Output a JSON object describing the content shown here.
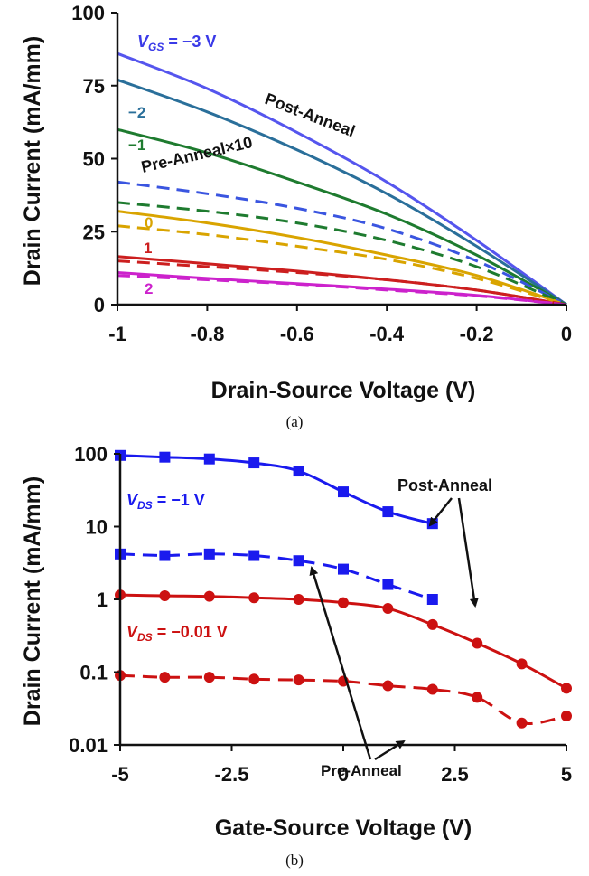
{
  "chart_data": [
    {
      "type": "line",
      "caption": "(a)",
      "xlabel": "Drain-Source Voltage (V)",
      "ylabel": "Drain Current (mA/mm)",
      "xlim": [
        -1,
        0
      ],
      "ylim": [
        0,
        100
      ],
      "xticks": [
        "-1",
        "-0.8",
        "-0.6",
        "-0.4",
        "-0.2",
        "0"
      ],
      "yticks": [
        "0",
        "25",
        "50",
        "75",
        "100"
      ],
      "grid": false,
      "annotations": {
        "vgs_label": "V",
        "vgs_sub": "GS",
        "vgs_value": " = −3 V",
        "post_anneal": "Post-Anneal",
        "pre_anneal": "Pre-Anneal×10",
        "gate_labels": [
          "−2",
          "−1",
          "0",
          "1",
          "2"
        ]
      },
      "series": [
        {
          "vgs": -3,
          "curve": "post-anneal",
          "color": "#5555ee",
          "x": [
            -1,
            -0.8,
            -0.6,
            -0.4,
            -0.2,
            0
          ],
          "y": [
            86,
            74,
            59,
            42,
            22,
            0
          ]
        },
        {
          "vgs": -2,
          "curve": "post-anneal",
          "color": "#2a6f9a",
          "x": [
            -1,
            -0.8,
            -0.6,
            -0.4,
            -0.2,
            0
          ],
          "y": [
            77,
            66,
            53,
            38,
            20,
            0
          ]
        },
        {
          "vgs": -1,
          "curve": "post-anneal",
          "color": "#1e7b2f",
          "x": [
            -1,
            -0.8,
            -0.6,
            -0.4,
            -0.2,
            0
          ],
          "y": [
            60,
            52,
            42,
            31,
            17,
            0
          ]
        },
        {
          "vgs": 0,
          "curve": "post-anneal",
          "color": "#d9a400",
          "x": [
            -1,
            -0.8,
            -0.6,
            -0.4,
            -0.2,
            0
          ],
          "y": [
            32,
            28,
            23,
            17,
            10,
            0
          ]
        },
        {
          "vgs": 1,
          "curve": "post-anneal",
          "color": "#cc1f1f",
          "x": [
            -1,
            -0.8,
            -0.6,
            -0.4,
            -0.2,
            0
          ],
          "y": [
            16.5,
            14,
            11.5,
            8.5,
            5,
            0
          ]
        },
        {
          "vgs": 2,
          "curve": "post-anneal",
          "color": "#cc22cc",
          "x": [
            -1,
            -0.8,
            -0.6,
            -0.4,
            -0.2,
            0
          ],
          "y": [
            11,
            9,
            7.2,
            5.3,
            3.2,
            0
          ]
        },
        {
          "vgs": -3,
          "curve": "pre-anneal-x10",
          "color": "#3a55e0",
          "x": [
            -1,
            -0.8,
            -0.6,
            -0.4,
            -0.2,
            0
          ],
          "y": [
            42,
            38,
            33,
            26,
            15,
            0
          ]
        },
        {
          "vgs": -1,
          "curve": "pre-anneal-x10",
          "color": "#1e7b2f",
          "x": [
            -1,
            -0.8,
            -0.6,
            -0.4,
            -0.2,
            0
          ],
          "y": [
            35,
            32,
            28,
            22,
            13,
            0
          ]
        },
        {
          "vgs": 0,
          "curve": "pre-anneal-x10",
          "color": "#d9a400",
          "x": [
            -1,
            -0.8,
            -0.6,
            -0.4,
            -0.2,
            0
          ],
          "y": [
            27,
            24,
            20,
            15.5,
            9,
            0
          ]
        },
        {
          "vgs": 1,
          "curve": "pre-anneal-x10",
          "color": "#cc1f1f",
          "x": [
            -1,
            -0.8,
            -0.6,
            -0.4,
            -0.2,
            0
          ],
          "y": [
            15,
            13,
            11,
            8.5,
            5,
            0
          ]
        },
        {
          "vgs": 2,
          "curve": "pre-anneal-x10",
          "color": "#cc22cc",
          "x": [
            -1,
            -0.8,
            -0.6,
            -0.4,
            -0.2,
            0
          ],
          "y": [
            10,
            8.5,
            7,
            5,
            3,
            0
          ]
        }
      ]
    },
    {
      "type": "line",
      "caption": "(b)",
      "xlabel": "Gate-Source Voltage (V)",
      "ylabel": "Drain Current (mA/mm)",
      "xlim": [
        -5,
        5
      ],
      "ylim": [
        0.01,
        100
      ],
      "yscale": "log",
      "xticks": [
        "-5",
        "-2.5",
        "0",
        "2.5",
        "5"
      ],
      "yticks": [
        "0.01",
        "0.1",
        "1",
        "10",
        "100"
      ],
      "grid": false,
      "annotations": {
        "post_anneal": "Post-Anneal",
        "pre_anneal": "Pre-Anneal",
        "vds_hi_label": "V",
        "vds_hi_sub": "DS",
        "vds_hi_value": " = −1 V",
        "vds_lo_label": "V",
        "vds_lo_sub": "DS",
        "vds_lo_value": " = −0.01 V"
      },
      "series": [
        {
          "vds": -1,
          "curve": "post-anneal",
          "marker": "square",
          "color": "#1a1aee",
          "x": [
            -5,
            -4,
            -3,
            -2,
            -1,
            0,
            1,
            2
          ],
          "y": [
            95,
            90,
            85,
            75,
            58,
            30,
            16,
            11
          ]
        },
        {
          "vds": -1,
          "curve": "pre-anneal",
          "marker": "square",
          "color": "#1a1aee",
          "x": [
            -5,
            -4,
            -3,
            -2,
            -1,
            0,
            1,
            2
          ],
          "y": [
            4.2,
            4.0,
            4.2,
            4.0,
            3.4,
            2.6,
            1.6,
            1.0
          ]
        },
        {
          "vds": -0.01,
          "curve": "post-anneal",
          "marker": "circle",
          "color": "#cc1111",
          "x": [
            -5,
            -4,
            -3,
            -2,
            -1,
            0,
            1,
            2,
            3,
            4,
            5
          ],
          "y": [
            1.15,
            1.12,
            1.1,
            1.05,
            1.0,
            0.9,
            0.75,
            0.45,
            0.25,
            0.13,
            0.06
          ]
        },
        {
          "vds": -0.01,
          "curve": "pre-anneal",
          "marker": "circle",
          "color": "#cc1111",
          "x": [
            -5,
            -4,
            -3,
            -2,
            -1,
            0,
            1,
            2,
            3,
            4,
            5
          ],
          "y": [
            0.09,
            0.085,
            0.085,
            0.08,
            0.078,
            0.075,
            0.065,
            0.058,
            0.045,
            0.02,
            0.025
          ]
        }
      ]
    }
  ]
}
